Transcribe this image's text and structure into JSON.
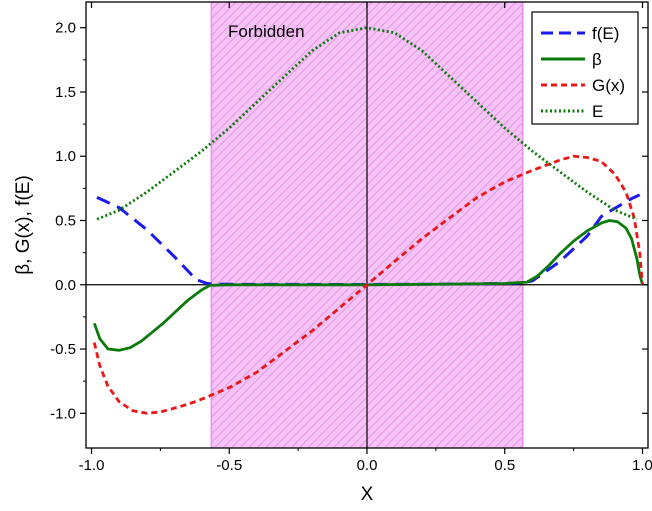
{
  "chart_data": {
    "type": "line",
    "xlabel": "X",
    "ylabel": "β, G(x), f(E)",
    "xlim": [
      -1.02,
      1.02
    ],
    "ylim": [
      -1.27,
      2.2
    ],
    "xticks": [
      -1.0,
      -0.5,
      0.0,
      0.5,
      1.0
    ],
    "xtick_labels": [
      "-1.0",
      "-0.5",
      "0.0",
      "0.5",
      "1.0"
    ],
    "yticks": [
      -1.0,
      -0.5,
      0.0,
      0.5,
      1.0,
      1.5,
      2.0
    ],
    "ytick_labels": [
      "-1.0",
      "-0.5",
      "0.0",
      "0.5",
      "1.0",
      "1.5",
      "2.0"
    ],
    "grid": false,
    "legend_position": "top-right",
    "shaded_region": {
      "x": [
        -0.565,
        0.565
      ],
      "label": "Forbidden",
      "color": "#f08cf0"
    },
    "reference_lines": {
      "horizontal": 0.0,
      "vertical": 0.0
    },
    "series": [
      {
        "name": "f(E)",
        "color": "#1a1af0",
        "dash": "dashed",
        "x": [
          -0.98,
          -0.9,
          -0.8,
          -0.7,
          -0.62,
          -0.58,
          -0.55,
          -0.5,
          -0.3,
          0.0,
          0.3,
          0.5,
          0.55,
          0.6,
          0.7,
          0.8,
          0.85,
          0.88,
          0.92,
          0.96,
          0.99
        ],
        "y": [
          0.68,
          0.6,
          0.43,
          0.22,
          0.04,
          0.01,
          0.005,
          0.004,
          0.003,
          0.002,
          0.005,
          0.01,
          0.012,
          0.03,
          0.18,
          0.38,
          0.53,
          0.57,
          0.62,
          0.67,
          0.7
        ]
      },
      {
        "name": "β",
        "color": "#0a7a0a",
        "dash": "solid",
        "x": [
          -0.99,
          -0.97,
          -0.94,
          -0.9,
          -0.86,
          -0.82,
          -0.78,
          -0.74,
          -0.7,
          -0.65,
          -0.6,
          -0.57,
          -0.5,
          -0.3,
          0.0,
          0.3,
          0.5,
          0.58,
          0.62,
          0.66,
          0.7,
          0.75,
          0.8,
          0.85,
          0.88,
          0.91,
          0.94,
          0.96,
          0.98,
          0.99,
          1.0
        ],
        "y": [
          -0.3,
          -0.42,
          -0.5,
          -0.51,
          -0.49,
          -0.44,
          -0.37,
          -0.3,
          -0.22,
          -0.12,
          -0.04,
          -0.005,
          0.0,
          0.0,
          0.0,
          0.005,
          0.01,
          0.02,
          0.07,
          0.15,
          0.24,
          0.34,
          0.42,
          0.48,
          0.5,
          0.49,
          0.44,
          0.36,
          0.2,
          0.08,
          0.0
        ]
      },
      {
        "name": "G(x)",
        "color": "#e81818",
        "dash": "dashed",
        "x": [
          -0.99,
          -0.97,
          -0.94,
          -0.9,
          -0.85,
          -0.8,
          -0.75,
          -0.7,
          -0.65,
          -0.6,
          -0.5,
          -0.4,
          -0.3,
          -0.2,
          -0.1,
          0.0,
          0.1,
          0.2,
          0.3,
          0.4,
          0.5,
          0.6,
          0.65,
          0.7,
          0.75,
          0.8,
          0.85,
          0.9,
          0.94,
          0.97,
          0.99,
          1.0
        ],
        "y": [
          -0.45,
          -0.63,
          -0.79,
          -0.91,
          -0.98,
          -1.0,
          -0.99,
          -0.96,
          -0.93,
          -0.89,
          -0.8,
          -0.68,
          -0.52,
          -0.36,
          -0.18,
          0.0,
          0.18,
          0.36,
          0.52,
          0.68,
          0.8,
          0.89,
          0.93,
          0.97,
          1.0,
          0.99,
          0.96,
          0.86,
          0.72,
          0.52,
          0.25,
          0.0
        ]
      },
      {
        "name": "E",
        "color": "#0a7a0a",
        "dash": "dotted",
        "x": [
          -0.98,
          -0.9,
          -0.8,
          -0.7,
          -0.6,
          -0.5,
          -0.4,
          -0.3,
          -0.2,
          -0.1,
          0.0,
          0.1,
          0.2,
          0.3,
          0.4,
          0.5,
          0.6,
          0.7,
          0.8,
          0.9,
          0.98
        ],
        "y": [
          0.51,
          0.58,
          0.72,
          0.88,
          1.04,
          1.22,
          1.42,
          1.62,
          1.82,
          1.96,
          2.0,
          1.96,
          1.82,
          1.62,
          1.42,
          1.22,
          1.04,
          0.88,
          0.72,
          0.58,
          0.51
        ]
      }
    ]
  }
}
